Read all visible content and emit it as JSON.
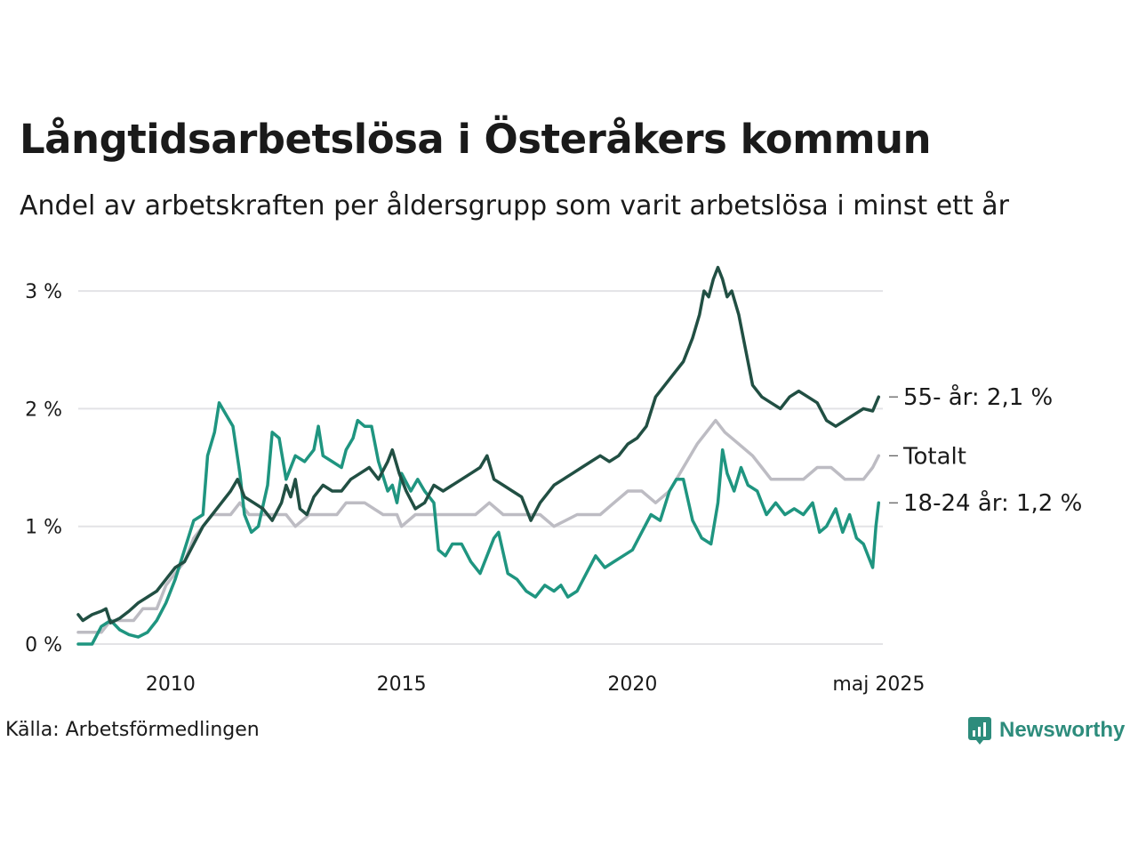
{
  "title": "Långtidsarbetslösa i Österåkers kommun",
  "subtitle": "Andel av arbetskraften per åldersgrupp som varit arbetslösa i minst ett år",
  "source": "Källa: Arbetsförmedlingen",
  "brand": {
    "name": "Newsworthy",
    "icon": "newsworthy-logo-icon",
    "color": "#2d8c7c"
  },
  "chart_data": {
    "type": "line",
    "ylim": [
      0,
      3.3
    ],
    "xlim": [
      2008.0,
      2025.42
    ],
    "y_ticks": [
      {
        "value": 0,
        "label": "0 %"
      },
      {
        "value": 1,
        "label": "1 %"
      },
      {
        "value": 2,
        "label": "2 %"
      },
      {
        "value": 3,
        "label": "3 %"
      }
    ],
    "x_ticks": [
      {
        "value": 2010,
        "label": "2010"
      },
      {
        "value": 2015,
        "label": "2015"
      },
      {
        "value": 2020,
        "label": "2020"
      },
      {
        "value": 2025.33,
        "label": "maj 2025"
      }
    ],
    "grid": true,
    "series": [
      {
        "name": "Totalt",
        "end_label": "Totalt",
        "color": "#bdbcc3",
        "points": [
          [
            2008.0,
            0.1
          ],
          [
            2008.5,
            0.1
          ],
          [
            2008.7,
            0.2
          ],
          [
            2009.2,
            0.2
          ],
          [
            2009.4,
            0.3
          ],
          [
            2009.7,
            0.3
          ],
          [
            2009.9,
            0.5
          ],
          [
            2010.1,
            0.6
          ],
          [
            2010.3,
            0.7
          ],
          [
            2010.5,
            0.9
          ],
          [
            2010.7,
            1.0
          ],
          [
            2010.9,
            1.1
          ],
          [
            2011.3,
            1.1
          ],
          [
            2011.5,
            1.2
          ],
          [
            2011.7,
            1.1
          ],
          [
            2012.5,
            1.1
          ],
          [
            2012.7,
            1.0
          ],
          [
            2013.0,
            1.1
          ],
          [
            2013.6,
            1.1
          ],
          [
            2013.8,
            1.2
          ],
          [
            2014.2,
            1.2
          ],
          [
            2014.6,
            1.1
          ],
          [
            2014.9,
            1.1
          ],
          [
            2015.0,
            1.0
          ],
          [
            2015.3,
            1.1
          ],
          [
            2015.8,
            1.1
          ],
          [
            2016.2,
            1.1
          ],
          [
            2016.6,
            1.1
          ],
          [
            2016.9,
            1.2
          ],
          [
            2017.2,
            1.1
          ],
          [
            2017.6,
            1.1
          ],
          [
            2018.0,
            1.1
          ],
          [
            2018.3,
            1.0
          ],
          [
            2018.8,
            1.1
          ],
          [
            2019.3,
            1.1
          ],
          [
            2019.6,
            1.2
          ],
          [
            2019.9,
            1.3
          ],
          [
            2020.2,
            1.3
          ],
          [
            2020.5,
            1.2
          ],
          [
            2020.8,
            1.3
          ],
          [
            2021.1,
            1.5
          ],
          [
            2021.4,
            1.7
          ],
          [
            2021.6,
            1.8
          ],
          [
            2021.8,
            1.9
          ],
          [
            2022.0,
            1.8
          ],
          [
            2022.3,
            1.7
          ],
          [
            2022.6,
            1.6
          ],
          [
            2022.8,
            1.5
          ],
          [
            2023.0,
            1.4
          ],
          [
            2023.5,
            1.4
          ],
          [
            2023.7,
            1.4
          ],
          [
            2024.0,
            1.5
          ],
          [
            2024.3,
            1.5
          ],
          [
            2024.6,
            1.4
          ],
          [
            2025.0,
            1.4
          ],
          [
            2025.2,
            1.5
          ],
          [
            2025.33,
            1.6
          ]
        ]
      },
      {
        "name": "18-24 år",
        "end_label": "18-24 år: 1,2 %",
        "color": "#1f9580",
        "points": [
          [
            2008.0,
            0.0
          ],
          [
            2008.3,
            0.0
          ],
          [
            2008.5,
            0.15
          ],
          [
            2008.7,
            0.2
          ],
          [
            2008.9,
            0.12
          ],
          [
            2009.1,
            0.08
          ],
          [
            2009.3,
            0.06
          ],
          [
            2009.5,
            0.1
          ],
          [
            2009.7,
            0.2
          ],
          [
            2009.9,
            0.35
          ],
          [
            2010.1,
            0.55
          ],
          [
            2010.3,
            0.8
          ],
          [
            2010.5,
            1.05
          ],
          [
            2010.7,
            1.1
          ],
          [
            2010.8,
            1.6
          ],
          [
            2010.95,
            1.8
          ],
          [
            2011.05,
            2.05
          ],
          [
            2011.2,
            1.95
          ],
          [
            2011.35,
            1.85
          ],
          [
            2011.5,
            1.45
          ],
          [
            2011.6,
            1.1
          ],
          [
            2011.75,
            0.95
          ],
          [
            2011.9,
            1.0
          ],
          [
            2012.1,
            1.35
          ],
          [
            2012.2,
            1.8
          ],
          [
            2012.35,
            1.75
          ],
          [
            2012.5,
            1.4
          ],
          [
            2012.7,
            1.6
          ],
          [
            2012.9,
            1.55
          ],
          [
            2013.1,
            1.65
          ],
          [
            2013.2,
            1.85
          ],
          [
            2013.3,
            1.6
          ],
          [
            2013.5,
            1.55
          ],
          [
            2013.7,
            1.5
          ],
          [
            2013.8,
            1.65
          ],
          [
            2013.95,
            1.75
          ],
          [
            2014.05,
            1.9
          ],
          [
            2014.2,
            1.85
          ],
          [
            2014.35,
            1.85
          ],
          [
            2014.5,
            1.55
          ],
          [
            2014.7,
            1.3
          ],
          [
            2014.8,
            1.35
          ],
          [
            2014.9,
            1.2
          ],
          [
            2015.0,
            1.45
          ],
          [
            2015.2,
            1.3
          ],
          [
            2015.35,
            1.4
          ],
          [
            2015.5,
            1.3
          ],
          [
            2015.7,
            1.2
          ],
          [
            2015.8,
            0.8
          ],
          [
            2015.95,
            0.75
          ],
          [
            2016.1,
            0.85
          ],
          [
            2016.3,
            0.85
          ],
          [
            2016.5,
            0.7
          ],
          [
            2016.7,
            0.6
          ],
          [
            2016.9,
            0.8
          ],
          [
            2017.0,
            0.9
          ],
          [
            2017.1,
            0.95
          ],
          [
            2017.3,
            0.6
          ],
          [
            2017.5,
            0.55
          ],
          [
            2017.7,
            0.45
          ],
          [
            2017.9,
            0.4
          ],
          [
            2018.1,
            0.5
          ],
          [
            2018.3,
            0.45
          ],
          [
            2018.45,
            0.5
          ],
          [
            2018.6,
            0.4
          ],
          [
            2018.8,
            0.45
          ],
          [
            2019.0,
            0.6
          ],
          [
            2019.2,
            0.75
          ],
          [
            2019.4,
            0.65
          ],
          [
            2019.6,
            0.7
          ],
          [
            2019.8,
            0.75
          ],
          [
            2020.0,
            0.8
          ],
          [
            2020.2,
            0.95
          ],
          [
            2020.4,
            1.1
          ],
          [
            2020.6,
            1.05
          ],
          [
            2020.8,
            1.3
          ],
          [
            2020.95,
            1.4
          ],
          [
            2021.1,
            1.4
          ],
          [
            2021.3,
            1.05
          ],
          [
            2021.5,
            0.9
          ],
          [
            2021.7,
            0.85
          ],
          [
            2021.85,
            1.2
          ],
          [
            2021.95,
            1.65
          ],
          [
            2022.05,
            1.45
          ],
          [
            2022.2,
            1.3
          ],
          [
            2022.35,
            1.5
          ],
          [
            2022.5,
            1.35
          ],
          [
            2022.7,
            1.3
          ],
          [
            2022.9,
            1.1
          ],
          [
            2023.1,
            1.2
          ],
          [
            2023.3,
            1.1
          ],
          [
            2023.5,
            1.15
          ],
          [
            2023.7,
            1.1
          ],
          [
            2023.9,
            1.2
          ],
          [
            2024.05,
            0.95
          ],
          [
            2024.2,
            1.0
          ],
          [
            2024.4,
            1.15
          ],
          [
            2024.55,
            0.95
          ],
          [
            2024.7,
            1.1
          ],
          [
            2024.85,
            0.9
          ],
          [
            2025.0,
            0.85
          ],
          [
            2025.1,
            0.75
          ],
          [
            2025.2,
            0.65
          ],
          [
            2025.27,
            1.0
          ],
          [
            2025.33,
            1.2
          ]
        ]
      },
      {
        "name": "55- år",
        "end_label": "55- år: 2,1 %",
        "color": "#214f43",
        "points": [
          [
            2008.0,
            0.25
          ],
          [
            2008.1,
            0.2
          ],
          [
            2008.3,
            0.25
          ],
          [
            2008.5,
            0.28
          ],
          [
            2008.6,
            0.3
          ],
          [
            2008.7,
            0.18
          ],
          [
            2008.9,
            0.22
          ],
          [
            2009.1,
            0.28
          ],
          [
            2009.3,
            0.35
          ],
          [
            2009.5,
            0.4
          ],
          [
            2009.7,
            0.45
          ],
          [
            2009.9,
            0.55
          ],
          [
            2010.1,
            0.65
          ],
          [
            2010.3,
            0.7
          ],
          [
            2010.5,
            0.85
          ],
          [
            2010.7,
            1.0
          ],
          [
            2010.9,
            1.1
          ],
          [
            2011.1,
            1.2
          ],
          [
            2011.3,
            1.3
          ],
          [
            2011.45,
            1.4
          ],
          [
            2011.6,
            1.25
          ],
          [
            2011.8,
            1.2
          ],
          [
            2012.0,
            1.15
          ],
          [
            2012.2,
            1.05
          ],
          [
            2012.4,
            1.2
          ],
          [
            2012.5,
            1.35
          ],
          [
            2012.6,
            1.25
          ],
          [
            2012.7,
            1.4
          ],
          [
            2012.8,
            1.15
          ],
          [
            2012.95,
            1.1
          ],
          [
            2013.1,
            1.25
          ],
          [
            2013.3,
            1.35
          ],
          [
            2013.5,
            1.3
          ],
          [
            2013.7,
            1.3
          ],
          [
            2013.9,
            1.4
          ],
          [
            2014.1,
            1.45
          ],
          [
            2014.3,
            1.5
          ],
          [
            2014.5,
            1.4
          ],
          [
            2014.7,
            1.55
          ],
          [
            2014.8,
            1.65
          ],
          [
            2014.95,
            1.45
          ],
          [
            2015.1,
            1.3
          ],
          [
            2015.3,
            1.15
          ],
          [
            2015.5,
            1.2
          ],
          [
            2015.7,
            1.35
          ],
          [
            2015.9,
            1.3
          ],
          [
            2016.1,
            1.35
          ],
          [
            2016.3,
            1.4
          ],
          [
            2016.5,
            1.45
          ],
          [
            2016.7,
            1.5
          ],
          [
            2016.85,
            1.6
          ],
          [
            2017.0,
            1.4
          ],
          [
            2017.2,
            1.35
          ],
          [
            2017.4,
            1.3
          ],
          [
            2017.6,
            1.25
          ],
          [
            2017.8,
            1.05
          ],
          [
            2018.0,
            1.2
          ],
          [
            2018.3,
            1.35
          ],
          [
            2018.5,
            1.4
          ],
          [
            2018.7,
            1.45
          ],
          [
            2018.9,
            1.5
          ],
          [
            2019.1,
            1.55
          ],
          [
            2019.3,
            1.6
          ],
          [
            2019.5,
            1.55
          ],
          [
            2019.7,
            1.6
          ],
          [
            2019.9,
            1.7
          ],
          [
            2020.1,
            1.75
          ],
          [
            2020.3,
            1.85
          ],
          [
            2020.5,
            2.1
          ],
          [
            2020.7,
            2.2
          ],
          [
            2020.9,
            2.3
          ],
          [
            2021.1,
            2.4
          ],
          [
            2021.3,
            2.6
          ],
          [
            2021.45,
            2.8
          ],
          [
            2021.55,
            3.0
          ],
          [
            2021.65,
            2.95
          ],
          [
            2021.75,
            3.1
          ],
          [
            2021.85,
            3.2
          ],
          [
            2021.95,
            3.1
          ],
          [
            2022.05,
            2.95
          ],
          [
            2022.15,
            3.0
          ],
          [
            2022.3,
            2.8
          ],
          [
            2022.45,
            2.5
          ],
          [
            2022.6,
            2.2
          ],
          [
            2022.8,
            2.1
          ],
          [
            2023.0,
            2.05
          ],
          [
            2023.2,
            2.0
          ],
          [
            2023.4,
            2.1
          ],
          [
            2023.6,
            2.15
          ],
          [
            2023.8,
            2.1
          ],
          [
            2024.0,
            2.05
          ],
          [
            2024.2,
            1.9
          ],
          [
            2024.4,
            1.85
          ],
          [
            2024.6,
            1.9
          ],
          [
            2024.8,
            1.95
          ],
          [
            2025.0,
            2.0
          ],
          [
            2025.2,
            1.98
          ],
          [
            2025.33,
            2.1
          ]
        ]
      }
    ]
  }
}
